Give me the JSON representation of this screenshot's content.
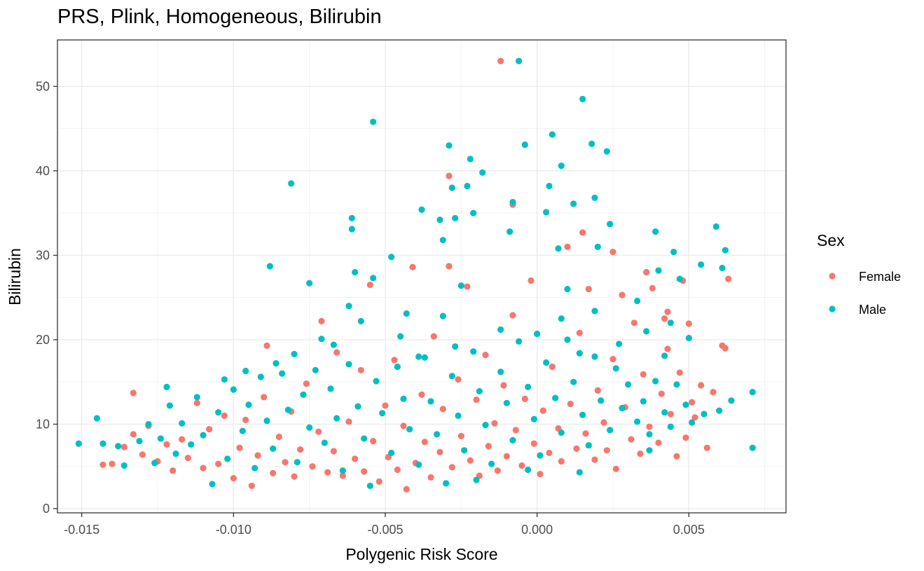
{
  "chart_data": {
    "type": "scatter",
    "title": "PRS, Plink, Homogeneous, Bilirubin",
    "xlabel": "Polygenic Risk Score",
    "ylabel": "Bilirubin",
    "xlim": [
      -0.0158,
      0.0082
    ],
    "ylim": [
      -0.5,
      55.5
    ],
    "x_ticks": [
      -0.015,
      -0.01,
      -0.005,
      0.0,
      0.005
    ],
    "x_tick_labels": [
      "-0.015",
      "-0.010",
      "-0.005",
      "0.000",
      "0.005"
    ],
    "y_ticks": [
      0,
      10,
      20,
      30,
      40,
      50
    ],
    "y_tick_labels": [
      "0",
      "10",
      "20",
      "30",
      "40",
      "50"
    ],
    "grid": true,
    "legend": {
      "title": "Sex",
      "position": "right"
    },
    "series": [
      {
        "name": "Female",
        "color": "#F8766D",
        "points": [
          [
            -0.0012,
            53.0
          ],
          [
            -0.0029,
            39.4
          ],
          [
            -0.0008,
            36.0
          ],
          [
            0.0015,
            32.7
          ],
          [
            0.0063,
            27.2
          ],
          [
            0.0048,
            27.0
          ],
          [
            0.0025,
            30.4
          ],
          [
            0.0061,
            19.3
          ],
          [
            0.005,
            21.9
          ],
          [
            0.0043,
            23.3
          ],
          [
            -0.0133,
            13.7
          ],
          [
            -0.0143,
            5.2
          ],
          [
            -0.014,
            5.3
          ],
          [
            -0.0136,
            7.3
          ],
          [
            -0.0133,
            8.8
          ],
          [
            -0.013,
            6.4
          ],
          [
            -0.0128,
            9.8
          ],
          [
            -0.0125,
            5.6
          ],
          [
            -0.0122,
            7.6
          ],
          [
            -0.012,
            4.5
          ],
          [
            -0.0117,
            8.2
          ],
          [
            -0.0115,
            6.0
          ],
          [
            -0.0112,
            12.5
          ],
          [
            -0.011,
            4.8
          ],
          [
            -0.0108,
            9.4
          ],
          [
            -0.0105,
            5.3
          ],
          [
            -0.0103,
            11.0
          ],
          [
            -0.01,
            3.6
          ],
          [
            -0.0098,
            7.2
          ],
          [
            -0.0096,
            10.5
          ],
          [
            -0.0094,
            2.7
          ],
          [
            -0.0092,
            6.3
          ],
          [
            -0.009,
            13.2
          ],
          [
            -0.0089,
            19.3
          ],
          [
            -0.0087,
            4.2
          ],
          [
            -0.0085,
            8.5
          ],
          [
            -0.0083,
            5.5
          ],
          [
            -0.0081,
            11.5
          ],
          [
            -0.008,
            3.8
          ],
          [
            -0.0078,
            7.0
          ],
          [
            -0.0076,
            14.8
          ],
          [
            -0.0074,
            5.0
          ],
          [
            -0.0072,
            9.1
          ],
          [
            -0.0071,
            22.2
          ],
          [
            -0.0069,
            4.3
          ],
          [
            -0.0067,
            6.8
          ],
          [
            -0.0066,
            18.5
          ],
          [
            -0.0064,
            3.9
          ],
          [
            -0.0062,
            10.3
          ],
          [
            -0.006,
            5.9
          ],
          [
            -0.0058,
            16.4
          ],
          [
            -0.0057,
            4.4
          ],
          [
            -0.0055,
            26.5
          ],
          [
            -0.0054,
            8.0
          ],
          [
            -0.0052,
            3.2
          ],
          [
            -0.005,
            12.2
          ],
          [
            -0.0049,
            6.1
          ],
          [
            -0.0047,
            17.6
          ],
          [
            -0.0046,
            4.6
          ],
          [
            -0.0044,
            9.8
          ],
          [
            -0.0043,
            2.3
          ],
          [
            -0.0041,
            28.6
          ],
          [
            -0.004,
            5.4
          ],
          [
            -0.0038,
            13.5
          ],
          [
            -0.0037,
            7.9
          ],
          [
            -0.0035,
            3.7
          ],
          [
            -0.0034,
            20.4
          ],
          [
            -0.0032,
            6.7
          ],
          [
            -0.0031,
            11.8
          ],
          [
            -0.0029,
            28.7
          ],
          [
            -0.0028,
            4.9
          ],
          [
            -0.0026,
            15.3
          ],
          [
            -0.0025,
            8.6
          ],
          [
            -0.0023,
            26.3
          ],
          [
            -0.0022,
            5.7
          ],
          [
            -0.002,
            12.9
          ],
          [
            -0.0019,
            3.9
          ],
          [
            -0.0017,
            18.2
          ],
          [
            -0.0016,
            7.4
          ],
          [
            -0.0014,
            10.1
          ],
          [
            -0.0013,
            4.5
          ],
          [
            -0.0011,
            14.6
          ],
          [
            -0.001,
            6.2
          ],
          [
            -0.0008,
            22.9
          ],
          [
            -0.0007,
            9.3
          ],
          [
            -0.0005,
            5.1
          ],
          [
            -0.0004,
            13.0
          ],
          [
            -0.0002,
            27.0
          ],
          [
            -0.0001,
            7.7
          ],
          [
            0.0001,
            4.1
          ],
          [
            0.0002,
            11.6
          ],
          [
            0.0004,
            6.6
          ],
          [
            0.0005,
            16.8
          ],
          [
            0.0007,
            9.5
          ],
          [
            0.0008,
            5.6
          ],
          [
            0.001,
            31.0
          ],
          [
            0.0011,
            12.4
          ],
          [
            0.0013,
            7.1
          ],
          [
            0.0014,
            20.8
          ],
          [
            0.0016,
            8.9
          ],
          [
            0.0017,
            26.0
          ],
          [
            0.0019,
            5.8
          ],
          [
            0.002,
            14.0
          ],
          [
            0.0022,
            10.2
          ],
          [
            0.0023,
            6.9
          ],
          [
            0.0025,
            17.7
          ],
          [
            0.0026,
            4.7
          ],
          [
            0.0028,
            25.3
          ],
          [
            0.0029,
            12.0
          ],
          [
            0.0031,
            8.2
          ],
          [
            0.0032,
            22.0
          ],
          [
            0.0034,
            6.5
          ],
          [
            0.0035,
            15.9
          ],
          [
            0.0037,
            9.7
          ],
          [
            0.0038,
            26.1
          ],
          [
            0.004,
            7.8
          ],
          [
            0.0041,
            13.6
          ],
          [
            0.0043,
            18.9
          ],
          [
            0.0044,
            11.2
          ],
          [
            0.0046,
            6.2
          ],
          [
            0.0047,
            16.1
          ],
          [
            0.0049,
            8.4
          ],
          [
            0.0051,
            12.6
          ],
          [
            0.0052,
            10.8
          ],
          [
            0.0054,
            14.6
          ],
          [
            0.0056,
            7.2
          ],
          [
            0.0058,
            13.8
          ],
          [
            0.0062,
            19.0
          ],
          [
            0.0036,
            28.0
          ],
          [
            0.0042,
            22.5
          ]
        ]
      },
      {
        "name": "Male",
        "color": "#00BFC4",
        "points": [
          [
            -0.0006,
            53.0
          ],
          [
            0.0015,
            48.5
          ],
          [
            -0.0054,
            45.8
          ],
          [
            0.0005,
            44.3
          ],
          [
            0.0018,
            43.2
          ],
          [
            -0.0029,
            43.0
          ],
          [
            -0.0004,
            43.1
          ],
          [
            0.0023,
            42.3
          ],
          [
            -0.0022,
            41.4
          ],
          [
            0.0008,
            40.6
          ],
          [
            -0.0018,
            39.8
          ],
          [
            -0.0081,
            38.5
          ],
          [
            -0.0023,
            38.2
          ],
          [
            -0.0028,
            38.0
          ],
          [
            0.0004,
            38.2
          ],
          [
            0.0019,
            36.8
          ],
          [
            -0.0008,
            36.3
          ],
          [
            0.0012,
            36.1
          ],
          [
            -0.0038,
            35.4
          ],
          [
            -0.0021,
            35.0
          ],
          [
            0.0003,
            35.1
          ],
          [
            -0.0061,
            34.4
          ],
          [
            -0.0032,
            34.2
          ],
          [
            -0.0027,
            34.4
          ],
          [
            0.0059,
            33.4
          ],
          [
            0.0024,
            33.7
          ],
          [
            -0.0061,
            33.1
          ],
          [
            -0.0009,
            32.8
          ],
          [
            0.0039,
            32.8
          ],
          [
            -0.0031,
            31.8
          ],
          [
            0.002,
            31.0
          ],
          [
            0.0062,
            30.6
          ],
          [
            0.0045,
            30.4
          ],
          [
            -0.0048,
            29.8
          ],
          [
            0.0007,
            30.8
          ],
          [
            -0.0088,
            28.7
          ],
          [
            0.0054,
            28.9
          ],
          [
            0.0061,
            28.5
          ],
          [
            -0.006,
            28.0
          ],
          [
            0.004,
            28.2
          ],
          [
            -0.0075,
            26.7
          ],
          [
            -0.0054,
            27.3
          ],
          [
            0.0047,
            27.2
          ],
          [
            -0.0025,
            26.4
          ],
          [
            0.001,
            26.0
          ],
          [
            -0.0062,
            24.0
          ],
          [
            0.0033,
            24.6
          ],
          [
            -0.0043,
            23.1
          ],
          [
            0.0019,
            23.4
          ],
          [
            -0.0031,
            22.8
          ],
          [
            -0.0058,
            22.2
          ],
          [
            0.0008,
            22.5
          ],
          [
            0.0044,
            22.0
          ],
          [
            -0.0012,
            21.2
          ],
          [
            0.0036,
            21.0
          ],
          [
            -0.0071,
            20.1
          ],
          [
            -0.0045,
            20.4
          ],
          [
            0.0,
            20.7
          ],
          [
            0.005,
            20.2
          ],
          [
            -0.0067,
            19.4
          ],
          [
            -0.0027,
            19.2
          ],
          [
            0.0027,
            19.5
          ],
          [
            -0.008,
            18.3
          ],
          [
            -0.0039,
            18.0
          ],
          [
            0.0014,
            18.4
          ],
          [
            0.0042,
            18.1
          ],
          [
            -0.0122,
            14.4
          ],
          [
            -0.0103,
            15.3
          ],
          [
            -0.0096,
            16.3
          ],
          [
            -0.0086,
            17.2
          ],
          [
            -0.0151,
            7.7
          ],
          [
            -0.0145,
            10.7
          ],
          [
            -0.0143,
            7.7
          ],
          [
            -0.0138,
            7.4
          ],
          [
            -0.0136,
            5.1
          ],
          [
            -0.0131,
            8.0
          ],
          [
            -0.0128,
            10.0
          ],
          [
            -0.0126,
            5.4
          ],
          [
            -0.0124,
            8.3
          ],
          [
            -0.0121,
            12.2
          ],
          [
            -0.0119,
            6.5
          ],
          [
            -0.0117,
            10.1
          ],
          [
            -0.0114,
            7.6
          ],
          [
            -0.0112,
            13.2
          ],
          [
            -0.011,
            8.7
          ],
          [
            -0.0107,
            2.9
          ],
          [
            -0.0105,
            11.4
          ],
          [
            -0.0102,
            5.9
          ],
          [
            -0.01,
            14.1
          ],
          [
            -0.0097,
            9.2
          ],
          [
            -0.0095,
            12.3
          ],
          [
            -0.0093,
            4.8
          ],
          [
            -0.0091,
            15.6
          ],
          [
            -0.0089,
            10.4
          ],
          [
            -0.0087,
            7.1
          ],
          [
            -0.0084,
            16.0
          ],
          [
            -0.0082,
            11.7
          ],
          [
            -0.0079,
            5.5
          ],
          [
            -0.0077,
            13.5
          ],
          [
            -0.0075,
            9.6
          ],
          [
            -0.0073,
            16.4
          ],
          [
            -0.007,
            7.8
          ],
          [
            -0.0068,
            14.2
          ],
          [
            -0.0066,
            10.7
          ],
          [
            -0.0064,
            4.5
          ],
          [
            -0.0062,
            17.1
          ],
          [
            -0.0059,
            12.1
          ],
          [
            -0.0057,
            8.3
          ],
          [
            -0.0055,
            2.7
          ],
          [
            -0.0053,
            15.1
          ],
          [
            -0.0051,
            11.3
          ],
          [
            -0.0048,
            6.6
          ],
          [
            -0.0046,
            16.8
          ],
          [
            -0.0044,
            13.0
          ],
          [
            -0.0042,
            9.4
          ],
          [
            -0.0039,
            5.2
          ],
          [
            -0.0037,
            17.9
          ],
          [
            -0.0035,
            12.7
          ],
          [
            -0.0033,
            8.8
          ],
          [
            -0.003,
            3.0
          ],
          [
            -0.0028,
            15.7
          ],
          [
            -0.0026,
            11.0
          ],
          [
            -0.0024,
            6.9
          ],
          [
            -0.0021,
            18.6
          ],
          [
            -0.0019,
            13.9
          ],
          [
            -0.0017,
            9.9
          ],
          [
            -0.0015,
            5.3
          ],
          [
            -0.0012,
            16.2
          ],
          [
            -0.001,
            12.5
          ],
          [
            -0.0008,
            8.1
          ],
          [
            -0.0006,
            19.8
          ],
          [
            -0.0003,
            14.4
          ],
          [
            -0.0001,
            10.6
          ],
          [
            0.0001,
            6.3
          ],
          [
            0.0003,
            17.3
          ],
          [
            0.0006,
            13.1
          ],
          [
            0.0008,
            9.0
          ],
          [
            0.001,
            20.0
          ],
          [
            0.0012,
            15.0
          ],
          [
            0.0015,
            11.1
          ],
          [
            0.0017,
            7.5
          ],
          [
            0.0019,
            18.0
          ],
          [
            0.0021,
            12.8
          ],
          [
            0.0024,
            9.3
          ],
          [
            0.0026,
            16.6
          ],
          [
            0.0028,
            11.9
          ],
          [
            0.003,
            14.7
          ],
          [
            0.0033,
            10.3
          ],
          [
            0.0035,
            12.7
          ],
          [
            0.0037,
            8.8
          ],
          [
            0.0039,
            15.1
          ],
          [
            0.0042,
            11.4
          ],
          [
            0.0044,
            9.7
          ],
          [
            0.0046,
            14.7
          ],
          [
            0.0049,
            12.3
          ],
          [
            0.0051,
            10.2
          ],
          [
            0.0055,
            11.2
          ],
          [
            0.006,
            11.6
          ],
          [
            0.0064,
            12.8
          ],
          [
            0.0071,
            13.8
          ],
          [
            0.0071,
            7.2
          ],
          [
            0.0014,
            4.3
          ],
          [
            -0.0003,
            4.6
          ],
          [
            0.0037,
            6.9
          ],
          [
            -0.002,
            3.4
          ]
        ]
      }
    ]
  }
}
